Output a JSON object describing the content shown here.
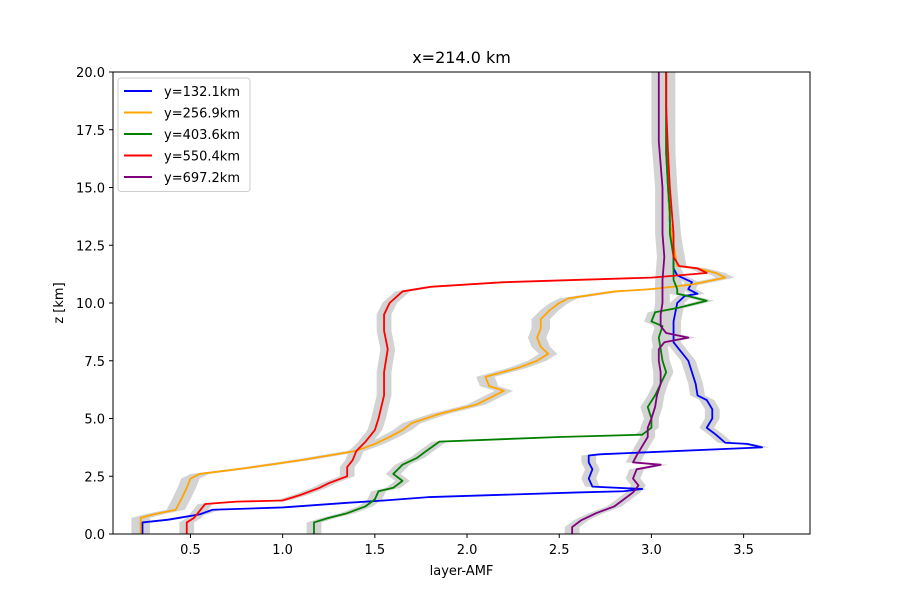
{
  "chart_data": {
    "type": "line",
    "title": "x=214.0 km",
    "xlabel": "layer-AMF",
    "ylabel": "z [km]",
    "xlim": [
      0.08,
      3.86
    ],
    "ylim": [
      0,
      20
    ],
    "xticks": [
      0.5,
      1.0,
      1.5,
      2.0,
      2.5,
      3.0,
      3.5
    ],
    "xtick_labels": [
      "0.5",
      "1.0",
      "1.5",
      "2.0",
      "2.5",
      "3.0",
      "3.5"
    ],
    "yticks": [
      0,
      2.5,
      5,
      7.5,
      10,
      12.5,
      15,
      17.5,
      20
    ],
    "ytick_labels": [
      "0.0",
      "2.5",
      "5.0",
      "7.5",
      "10.0",
      "12.5",
      "15.0",
      "17.5",
      "20.0"
    ],
    "grid": false,
    "legend_position": "upper-left",
    "band_color": "#d3d3d3",
    "series": [
      {
        "name": "y=132.1km",
        "color": "#0000ff",
        "band": 0.04,
        "points": [
          [
            0.24,
            0.0
          ],
          [
            0.24,
            0.5
          ],
          [
            0.38,
            0.62
          ],
          [
            0.55,
            0.85
          ],
          [
            0.62,
            1.05
          ],
          [
            1.0,
            1.15
          ],
          [
            1.35,
            1.35
          ],
          [
            1.55,
            1.45
          ],
          [
            1.8,
            1.6
          ],
          [
            2.6,
            1.8
          ],
          [
            2.85,
            1.85
          ],
          [
            2.95,
            1.95
          ],
          [
            2.68,
            2.05
          ],
          [
            2.66,
            2.4
          ],
          [
            2.68,
            2.8
          ],
          [
            2.66,
            3.1
          ],
          [
            2.66,
            3.4
          ],
          [
            2.72,
            3.45
          ],
          [
            3.6,
            3.75
          ],
          [
            3.52,
            3.9
          ],
          [
            3.4,
            3.95
          ],
          [
            3.35,
            4.3
          ],
          [
            3.3,
            4.6
          ],
          [
            3.33,
            5.0
          ],
          [
            3.33,
            5.4
          ],
          [
            3.3,
            5.8
          ],
          [
            3.25,
            6.0
          ],
          [
            3.24,
            6.5
          ],
          [
            3.22,
            7.0
          ],
          [
            3.2,
            7.5
          ],
          [
            3.16,
            7.9
          ],
          [
            3.12,
            8.3
          ],
          [
            3.12,
            9.2
          ],
          [
            3.14,
            10.0
          ],
          [
            3.18,
            10.3
          ],
          [
            3.25,
            10.4
          ],
          [
            3.2,
            10.6
          ],
          [
            3.22,
            10.9
          ],
          [
            3.14,
            11.2
          ],
          [
            3.12,
            11.5
          ],
          [
            3.12,
            12.5
          ],
          [
            3.1,
            13.5
          ],
          [
            3.09,
            15.0
          ],
          [
            3.08,
            16.5
          ],
          [
            3.08,
            18.5
          ],
          [
            3.08,
            20.0
          ]
        ]
      },
      {
        "name": "y=256.9km",
        "color": "#ffa500",
        "band": 0.05,
        "points": [
          [
            0.23,
            0.0
          ],
          [
            0.23,
            0.7
          ],
          [
            0.3,
            0.85
          ],
          [
            0.42,
            1.05
          ],
          [
            0.45,
            1.5
          ],
          [
            0.48,
            2.0
          ],
          [
            0.5,
            2.4
          ],
          [
            0.55,
            2.6
          ],
          [
            0.8,
            2.85
          ],
          [
            1.1,
            3.2
          ],
          [
            1.4,
            3.6
          ],
          [
            1.5,
            3.9
          ],
          [
            1.58,
            4.2
          ],
          [
            1.65,
            4.5
          ],
          [
            1.7,
            4.8
          ],
          [
            1.85,
            5.2
          ],
          [
            2.05,
            5.6
          ],
          [
            2.1,
            5.8
          ],
          [
            2.2,
            6.2
          ],
          [
            2.12,
            6.4
          ],
          [
            2.1,
            6.8
          ],
          [
            2.28,
            7.2
          ],
          [
            2.38,
            7.5
          ],
          [
            2.44,
            7.8
          ],
          [
            2.4,
            8.1
          ],
          [
            2.38,
            8.5
          ],
          [
            2.4,
            8.9
          ],
          [
            2.4,
            9.3
          ],
          [
            2.45,
            9.7
          ],
          [
            2.5,
            10.0
          ],
          [
            2.55,
            10.2
          ],
          [
            2.8,
            10.5
          ],
          [
            3.0,
            10.6
          ],
          [
            3.22,
            10.8
          ],
          [
            3.4,
            11.1
          ],
          [
            3.35,
            11.3
          ],
          [
            3.25,
            11.5
          ],
          [
            3.14,
            11.6
          ],
          [
            3.12,
            12.5
          ],
          [
            3.1,
            13.5
          ],
          [
            3.09,
            15.0
          ],
          [
            3.08,
            16.5
          ],
          [
            3.08,
            18.5
          ],
          [
            3.08,
            20.0
          ]
        ]
      },
      {
        "name": "y=403.6km",
        "color": "#008000",
        "band": 0.04,
        "points": [
          [
            1.17,
            0.0
          ],
          [
            1.17,
            0.5
          ],
          [
            1.25,
            0.7
          ],
          [
            1.35,
            0.9
          ],
          [
            1.45,
            1.2
          ],
          [
            1.5,
            1.5
          ],
          [
            1.52,
            1.85
          ],
          [
            1.6,
            2.0
          ],
          [
            1.65,
            2.3
          ],
          [
            1.6,
            2.6
          ],
          [
            1.65,
            3.0
          ],
          [
            1.73,
            3.3
          ],
          [
            1.78,
            3.6
          ],
          [
            1.85,
            4.0
          ],
          [
            2.5,
            4.2
          ],
          [
            2.95,
            4.3
          ],
          [
            3.0,
            4.6
          ],
          [
            3.0,
            5.0
          ],
          [
            2.98,
            5.5
          ],
          [
            3.02,
            6.0
          ],
          [
            3.05,
            6.5
          ],
          [
            3.08,
            7.0
          ],
          [
            3.06,
            7.5
          ],
          [
            3.05,
            8.0
          ],
          [
            3.04,
            8.5
          ],
          [
            3.06,
            9.0
          ],
          [
            3.0,
            9.2
          ],
          [
            3.02,
            9.6
          ],
          [
            3.15,
            9.8
          ],
          [
            3.3,
            10.1
          ],
          [
            3.2,
            10.3
          ],
          [
            3.14,
            10.4
          ],
          [
            3.14,
            10.6
          ],
          [
            3.12,
            11.0
          ],
          [
            3.12,
            12.0
          ],
          [
            3.1,
            13.0
          ],
          [
            3.1,
            14.0
          ],
          [
            3.09,
            15.0
          ],
          [
            3.08,
            16.5
          ],
          [
            3.08,
            18.5
          ],
          [
            3.08,
            20.0
          ]
        ]
      },
      {
        "name": "y=550.4km",
        "color": "#ff0000",
        "band": 0.04,
        "points": [
          [
            0.48,
            0.0
          ],
          [
            0.48,
            0.5
          ],
          [
            0.52,
            0.7
          ],
          [
            0.56,
            1.1
          ],
          [
            0.58,
            1.3
          ],
          [
            0.75,
            1.4
          ],
          [
            1.0,
            1.45
          ],
          [
            1.1,
            1.7
          ],
          [
            1.2,
            2.0
          ],
          [
            1.25,
            2.2
          ],
          [
            1.35,
            2.5
          ],
          [
            1.35,
            2.9
          ],
          [
            1.38,
            3.2
          ],
          [
            1.4,
            3.6
          ],
          [
            1.45,
            4.0
          ],
          [
            1.5,
            4.5
          ],
          [
            1.52,
            5.0
          ],
          [
            1.55,
            6.0
          ],
          [
            1.55,
            7.0
          ],
          [
            1.57,
            8.0
          ],
          [
            1.55,
            8.8
          ],
          [
            1.55,
            9.5
          ],
          [
            1.58,
            10.0
          ],
          [
            1.65,
            10.5
          ],
          [
            1.8,
            10.7
          ],
          [
            2.2,
            10.9
          ],
          [
            3.0,
            11.1
          ],
          [
            3.3,
            11.3
          ],
          [
            3.25,
            11.5
          ],
          [
            3.15,
            11.6
          ],
          [
            3.12,
            12.0
          ],
          [
            3.12,
            13.0
          ],
          [
            3.11,
            14.0
          ],
          [
            3.1,
            15.0
          ],
          [
            3.09,
            16.5
          ],
          [
            3.08,
            18.5
          ],
          [
            3.08,
            20.0
          ]
        ]
      },
      {
        "name": "y=697.2km",
        "color": "#800080",
        "band": 0.04,
        "points": [
          [
            2.57,
            0.0
          ],
          [
            2.57,
            0.3
          ],
          [
            2.62,
            0.6
          ],
          [
            2.7,
            0.9
          ],
          [
            2.8,
            1.2
          ],
          [
            2.85,
            1.5
          ],
          [
            2.9,
            1.8
          ],
          [
            2.93,
            2.1
          ],
          [
            2.9,
            2.4
          ],
          [
            2.92,
            2.8
          ],
          [
            3.05,
            3.0
          ],
          [
            2.9,
            3.1
          ],
          [
            2.92,
            3.4
          ],
          [
            2.95,
            3.8
          ],
          [
            2.98,
            4.2
          ],
          [
            2.98,
            4.6
          ],
          [
            3.0,
            5.0
          ],
          [
            3.02,
            5.5
          ],
          [
            3.03,
            6.0
          ],
          [
            3.05,
            6.5
          ],
          [
            3.05,
            7.0
          ],
          [
            3.04,
            7.5
          ],
          [
            3.04,
            8.0
          ],
          [
            3.07,
            8.3
          ],
          [
            3.2,
            8.5
          ],
          [
            3.08,
            8.7
          ],
          [
            3.05,
            9.0
          ],
          [
            3.05,
            9.5
          ],
          [
            3.06,
            10.0
          ],
          [
            3.06,
            11.0
          ],
          [
            3.07,
            12.0
          ],
          [
            3.06,
            13.0
          ],
          [
            3.06,
            14.0
          ],
          [
            3.06,
            15.0
          ],
          [
            3.05,
            16.0
          ],
          [
            3.04,
            17.0
          ],
          [
            3.04,
            18.5
          ],
          [
            3.04,
            20.0
          ]
        ]
      }
    ]
  }
}
